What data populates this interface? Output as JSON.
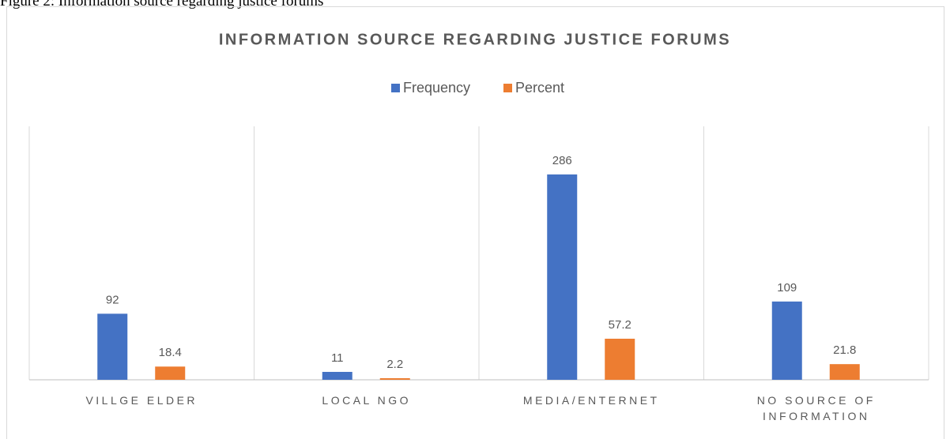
{
  "caption": "Figure 2: Information source regarding justice forums",
  "chart_data": {
    "type": "bar",
    "title": "INFORMATION SOURCE REGARDING JUSTICE FORUMS",
    "categories": [
      "VILLGE ELDER",
      "LOCAL NGO",
      "MEDIA/ENTERNET",
      "NO SOURCE OF INFORMATION"
    ],
    "series": [
      {
        "name": "Frequency",
        "color": "#4472c4",
        "values": [
          92,
          11,
          286,
          109
        ]
      },
      {
        "name": "Percent",
        "color": "#ed7d31",
        "values": [
          18.4,
          2.2,
          57.2,
          21.8
        ]
      }
    ],
    "ylim": [
      0,
      353
    ],
    "legend": "top",
    "category_separators": true
  }
}
